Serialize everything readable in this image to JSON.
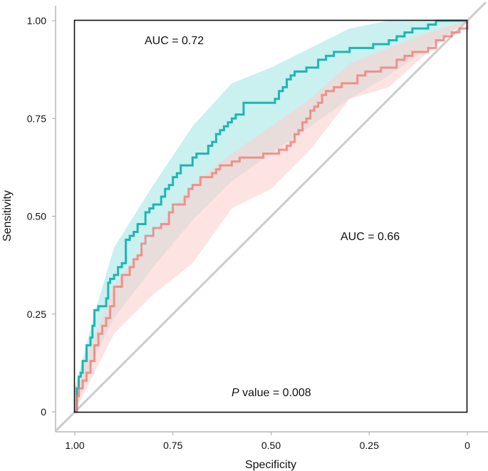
{
  "chart_data": {
    "type": "line",
    "title": "",
    "xlabel": "Specificity",
    "ylabel": "Sensitivity",
    "xlim": [
      1.0,
      0.0
    ],
    "ylim": [
      0.0,
      1.0
    ],
    "x_reversed": true,
    "grid": false,
    "x_ticks": [
      1.0,
      0.75,
      0.5,
      0.25,
      0.0
    ],
    "x_tick_labels": [
      "1.00",
      "0.75",
      "0.50",
      "0.25",
      "0"
    ],
    "y_ticks": [
      0.0,
      0.25,
      0.5,
      0.75,
      1.0
    ],
    "y_tick_labels": [
      "0",
      "0.25",
      "0.50",
      "0.75",
      "1.00"
    ],
    "reference_line": {
      "name": "chance",
      "color": "#cccccc"
    },
    "series": [
      {
        "name": "cyan",
        "color": "#1fb5b2",
        "band_color": "#a6e6e6",
        "auc_label": "AUC = 0.72",
        "specificity": [
          1.0,
          0.995,
          0.99,
          0.985,
          0.98,
          0.975,
          0.97,
          0.96,
          0.955,
          0.95,
          0.94,
          0.92,
          0.915,
          0.91,
          0.9,
          0.89,
          0.88,
          0.87,
          0.86,
          0.85,
          0.84,
          0.83,
          0.82,
          0.81,
          0.8,
          0.79,
          0.78,
          0.77,
          0.76,
          0.75,
          0.74,
          0.73,
          0.72,
          0.71,
          0.7,
          0.69,
          0.68,
          0.67,
          0.66,
          0.65,
          0.64,
          0.63,
          0.62,
          0.61,
          0.6,
          0.59,
          0.58,
          0.57,
          0.56,
          0.55,
          0.54,
          0.53,
          0.52,
          0.51,
          0.5,
          0.49,
          0.48,
          0.47,
          0.46,
          0.45,
          0.44,
          0.43,
          0.42,
          0.41,
          0.4,
          0.38,
          0.36,
          0.34,
          0.32,
          0.3,
          0.28,
          0.26,
          0.24,
          0.22,
          0.2,
          0.18,
          0.16,
          0.14,
          0.12,
          0.1,
          0.08,
          0.06,
          0.04,
          0.02,
          0.0
        ],
        "sensitivity": [
          0.0,
          0.06,
          0.09,
          0.1,
          0.13,
          0.13,
          0.17,
          0.19,
          0.22,
          0.26,
          0.27,
          0.29,
          0.33,
          0.34,
          0.35,
          0.37,
          0.38,
          0.44,
          0.45,
          0.46,
          0.48,
          0.48,
          0.51,
          0.52,
          0.53,
          0.53,
          0.55,
          0.57,
          0.58,
          0.6,
          0.61,
          0.63,
          0.63,
          0.63,
          0.65,
          0.66,
          0.66,
          0.66,
          0.68,
          0.69,
          0.71,
          0.72,
          0.73,
          0.74,
          0.75,
          0.76,
          0.76,
          0.79,
          0.79,
          0.79,
          0.79,
          0.79,
          0.79,
          0.79,
          0.79,
          0.8,
          0.82,
          0.83,
          0.85,
          0.86,
          0.87,
          0.87,
          0.87,
          0.88,
          0.88,
          0.9,
          0.91,
          0.92,
          0.92,
          0.93,
          0.93,
          0.93,
          0.94,
          0.94,
          0.95,
          0.96,
          0.97,
          0.98,
          0.98,
          0.99,
          1.0,
          1.0,
          1.0,
          1.0,
          1.0
        ],
        "band_specificity": [
          1.0,
          0.95,
          0.9,
          0.8,
          0.7,
          0.6,
          0.5,
          0.4,
          0.3,
          0.2,
          0.1,
          0.0
        ],
        "band_upper": [
          0.06,
          0.25,
          0.42,
          0.58,
          0.73,
          0.84,
          0.88,
          0.93,
          0.98,
          1.0,
          1.0,
          1.0
        ],
        "band_lower": [
          0.0,
          0.14,
          0.24,
          0.37,
          0.49,
          0.59,
          0.66,
          0.73,
          0.8,
          0.86,
          0.93,
          1.0
        ]
      },
      {
        "name": "red",
        "color": "#f07b72",
        "band_color": "#fbd0cd",
        "auc_label": "AUC = 0.66",
        "specificity": [
          1.0,
          0.995,
          0.99,
          0.98,
          0.97,
          0.96,
          0.95,
          0.94,
          0.93,
          0.92,
          0.91,
          0.9,
          0.88,
          0.86,
          0.85,
          0.84,
          0.83,
          0.82,
          0.8,
          0.78,
          0.76,
          0.75,
          0.74,
          0.72,
          0.71,
          0.7,
          0.68,
          0.66,
          0.65,
          0.64,
          0.63,
          0.62,
          0.6,
          0.58,
          0.56,
          0.54,
          0.52,
          0.5,
          0.48,
          0.46,
          0.45,
          0.44,
          0.43,
          0.42,
          0.41,
          0.4,
          0.39,
          0.38,
          0.37,
          0.36,
          0.34,
          0.32,
          0.3,
          0.28,
          0.26,
          0.24,
          0.22,
          0.2,
          0.18,
          0.16,
          0.14,
          0.12,
          0.1,
          0.08,
          0.06,
          0.04,
          0.02,
          0.0
        ],
        "sensitivity": [
          0.0,
          0.04,
          0.06,
          0.08,
          0.1,
          0.13,
          0.17,
          0.2,
          0.22,
          0.24,
          0.27,
          0.32,
          0.35,
          0.37,
          0.39,
          0.4,
          0.43,
          0.45,
          0.47,
          0.48,
          0.51,
          0.53,
          0.53,
          0.55,
          0.57,
          0.58,
          0.6,
          0.6,
          0.61,
          0.62,
          0.63,
          0.63,
          0.64,
          0.65,
          0.65,
          0.65,
          0.66,
          0.66,
          0.67,
          0.68,
          0.69,
          0.71,
          0.72,
          0.74,
          0.75,
          0.77,
          0.78,
          0.79,
          0.81,
          0.82,
          0.83,
          0.84,
          0.84,
          0.86,
          0.87,
          0.87,
          0.88,
          0.88,
          0.9,
          0.91,
          0.92,
          0.92,
          0.93,
          0.95,
          0.96,
          0.97,
          0.98,
          1.0
        ],
        "band_specificity": [
          1.0,
          0.9,
          0.8,
          0.7,
          0.6,
          0.5,
          0.4,
          0.3,
          0.2,
          0.1,
          0.0
        ],
        "band_upper": [
          0.06,
          0.32,
          0.45,
          0.58,
          0.66,
          0.73,
          0.8,
          0.89,
          0.93,
          0.97,
          1.0
        ],
        "band_lower": [
          0.0,
          0.2,
          0.3,
          0.38,
          0.52,
          0.57,
          0.67,
          0.8,
          0.83,
          0.92,
          1.0
        ]
      }
    ],
    "annotations": {
      "p_value_italic": "P",
      "p_value_text": " value = 0.008"
    }
  }
}
